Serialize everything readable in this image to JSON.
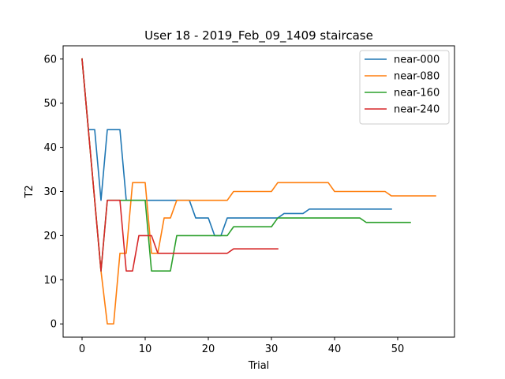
{
  "chart_data": {
    "type": "line",
    "title": "User 18 - 2019_Feb_09_1409 staircase",
    "xlabel": "Trial",
    "ylabel": "T2",
    "xlim": [
      -3,
      59
    ],
    "ylim": [
      -3,
      63
    ],
    "xticks": [
      0,
      10,
      20,
      30,
      40,
      50
    ],
    "yticks": [
      0,
      10,
      20,
      30,
      40,
      50,
      60
    ],
    "grid": false,
    "legend_position": "top-right",
    "series": [
      {
        "name": "near-000",
        "color": "#1f77b4",
        "x": [
          0,
          1,
          2,
          3,
          4,
          5,
          6,
          7,
          8,
          9,
          10,
          11,
          12,
          13,
          14,
          15,
          16,
          17,
          18,
          19,
          20,
          21,
          22,
          23,
          24,
          25,
          26,
          27,
          28,
          29,
          30,
          31,
          32,
          33,
          34,
          35,
          36,
          37,
          38,
          39,
          40,
          41,
          42,
          43,
          44,
          45,
          46,
          47,
          48,
          49
        ],
        "y": [
          60,
          44,
          44,
          28,
          44,
          44,
          44,
          28,
          28,
          28,
          28,
          28,
          28,
          28,
          28,
          28,
          28,
          28,
          24,
          24,
          24,
          20,
          20,
          24,
          24,
          24,
          24,
          24,
          24,
          24,
          24,
          24,
          25,
          25,
          25,
          25,
          26,
          26,
          26,
          26,
          26,
          26,
          26,
          26,
          26,
          26,
          26,
          26,
          26,
          26
        ]
      },
      {
        "name": "near-080",
        "color": "#ff7f0e",
        "x": [
          0,
          1,
          2,
          3,
          4,
          5,
          6,
          7,
          8,
          9,
          10,
          11,
          12,
          13,
          14,
          15,
          16,
          17,
          18,
          19,
          20,
          21,
          22,
          23,
          24,
          25,
          26,
          27,
          28,
          29,
          30,
          31,
          32,
          33,
          34,
          35,
          36,
          37,
          38,
          39,
          40,
          41,
          42,
          43,
          44,
          45,
          46,
          47,
          48,
          49,
          50,
          51,
          52,
          53,
          54,
          55,
          56
        ],
        "y": [
          60,
          44,
          28,
          12,
          0,
          0,
          16,
          16,
          32,
          32,
          32,
          16,
          16,
          24,
          24,
          28,
          28,
          28,
          28,
          28,
          28,
          28,
          28,
          28,
          30,
          30,
          30,
          30,
          30,
          30,
          30,
          32,
          32,
          32,
          32,
          32,
          32,
          32,
          32,
          32,
          30,
          30,
          30,
          30,
          30,
          30,
          30,
          30,
          30,
          29,
          29,
          29,
          29,
          29,
          29,
          29,
          29
        ]
      },
      {
        "name": "near-160",
        "color": "#2ca02c",
        "x": [
          0,
          1,
          2,
          3,
          4,
          5,
          6,
          7,
          8,
          9,
          10,
          11,
          12,
          13,
          14,
          15,
          16,
          17,
          18,
          19,
          20,
          21,
          22,
          23,
          24,
          25,
          26,
          27,
          28,
          29,
          30,
          31,
          32,
          33,
          34,
          35,
          36,
          37,
          38,
          39,
          40,
          41,
          42,
          43,
          44,
          45,
          46,
          47,
          48,
          49,
          50,
          51,
          52
        ],
        "y": [
          60,
          44,
          28,
          12,
          28,
          28,
          28,
          28,
          28,
          28,
          28,
          12,
          12,
          12,
          12,
          20,
          20,
          20,
          20,
          20,
          20,
          20,
          20,
          20,
          22,
          22,
          22,
          22,
          22,
          22,
          22,
          24,
          24,
          24,
          24,
          24,
          24,
          24,
          24,
          24,
          24,
          24,
          24,
          24,
          24,
          23,
          23,
          23,
          23,
          23,
          23,
          23,
          23
        ]
      },
      {
        "name": "near-240",
        "color": "#d62728",
        "x": [
          0,
          1,
          2,
          3,
          4,
          5,
          6,
          7,
          8,
          9,
          10,
          11,
          12,
          13,
          14,
          15,
          16,
          17,
          18,
          19,
          20,
          21,
          22,
          23,
          24,
          25,
          26,
          27,
          28,
          29,
          30,
          31
        ],
        "y": [
          60,
          44,
          28,
          12,
          28,
          28,
          28,
          12,
          12,
          20,
          20,
          20,
          16,
          16,
          16,
          16,
          16,
          16,
          16,
          16,
          16,
          16,
          16,
          16,
          17,
          17,
          17,
          17,
          17,
          17,
          17,
          17
        ]
      }
    ]
  }
}
